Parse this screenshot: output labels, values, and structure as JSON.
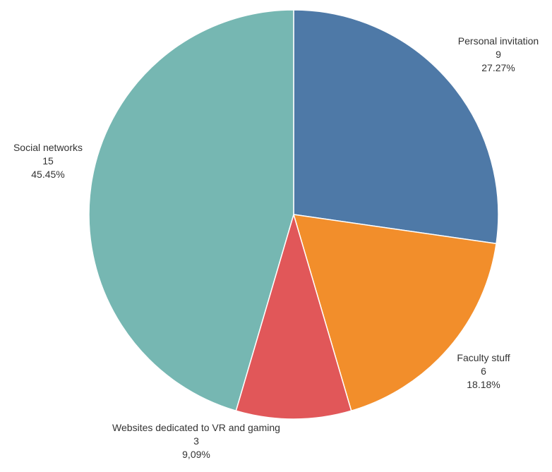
{
  "chart_data": {
    "type": "pie",
    "title": "",
    "slices": [
      {
        "label": "Personal invitation",
        "value": 9,
        "percent": "27.27%",
        "color": "#4e79a7"
      },
      {
        "label": "Faculty stuff",
        "value": 6,
        "percent": "18.18%",
        "color": "#f28e2b"
      },
      {
        "label": "Websites dedicated to VR and gaming",
        "value": 3,
        "percent": "9,09%",
        "color": "#e15759"
      },
      {
        "label": "Social networks",
        "value": 15,
        "percent": "45.45%",
        "color": "#76b7b2"
      }
    ],
    "start_angle_deg": 0,
    "direction": "clockwise",
    "legend": "none"
  }
}
